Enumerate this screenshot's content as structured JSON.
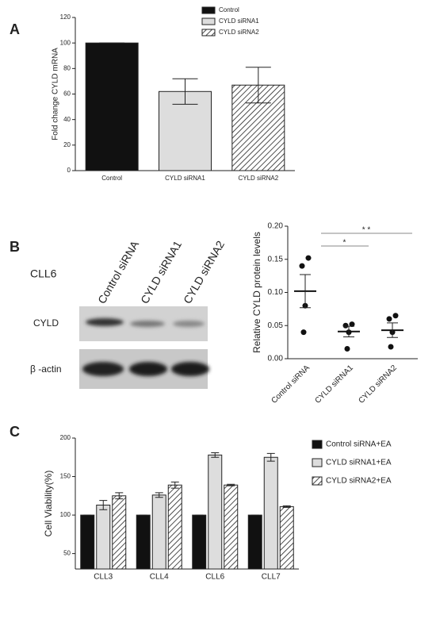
{
  "chart_data": [
    {
      "type": "bar",
      "panel": "A",
      "ylabel": "Fold change CYLD mRNA",
      "categories": [
        "Control",
        "CYLD siRNA1",
        "CYLD siRNA2"
      ],
      "values": [
        100,
        62,
        67
      ],
      "errors": [
        0,
        10,
        14
      ],
      "colors": [
        "#111111",
        "#dddddd",
        "#ffffff"
      ],
      "patterns": [
        "solid",
        "solid",
        "hatch"
      ],
      "ylim": [
        0,
        120
      ],
      "yticks": [
        0,
        20,
        40,
        60,
        80,
        100,
        120
      ],
      "legend": "top-right"
    },
    {
      "type": "dot",
      "panel": "B",
      "ylabel": "Relative CYLD protein levels",
      "blot": {
        "title": "CLL6",
        "lanes": [
          "Control siRNA",
          "CYLD siRNA1",
          "CYLD siRNA2"
        ],
        "rows": [
          "CYLD",
          "β -actin"
        ]
      },
      "categories": [
        "Control siRNA",
        "CYLD siRNA1",
        "CYLD siRNA2"
      ],
      "points": [
        [
          0.14,
          0.152,
          0.08,
          0.04
        ],
        [
          0.05,
          0.052,
          0.04,
          0.015
        ],
        [
          0.06,
          0.065,
          0.04,
          0.018
        ]
      ],
      "means": [
        0.102,
        0.041,
        0.043
      ],
      "errors": [
        0.025,
        0.008,
        0.011
      ],
      "ylim": [
        0,
        0.2
      ],
      "yticks": [
        {
          "value": 0,
          "label": "0.00"
        },
        {
          "value": 0.05,
          "label": "0.05"
        },
        {
          "value": 0.1,
          "label": "0.10"
        },
        {
          "value": 0.15,
          "label": "0.15"
        },
        {
          "value": 0.2,
          "label": "0.20"
        }
      ],
      "annotations": [
        {
          "text": "*",
          "from": 0,
          "to": 1
        },
        {
          "text": "* *",
          "from": 0,
          "to": 2
        }
      ]
    },
    {
      "type": "grouped-bar",
      "panel": "C",
      "ylabel": "Cell Viability(%)",
      "categories": [
        "CLL3",
        "CLL4",
        "CLL6",
        "CLL7"
      ],
      "series": [
        {
          "name": "Control siRNA+EA",
          "color": "#111111",
          "pattern": "solid",
          "values": [
            100,
            100,
            100,
            100
          ],
          "errors": [
            0,
            0,
            0,
            0
          ]
        },
        {
          "name": "CYLD siRNA1+EA",
          "color": "#dddddd",
          "pattern": "solid",
          "values": [
            113,
            126,
            178,
            175
          ],
          "errors": [
            6,
            3,
            3,
            5
          ]
        },
        {
          "name": "CYLD siRNA2+EA",
          "color": "#ffffff",
          "pattern": "hatch",
          "values": [
            125,
            139,
            139,
            111
          ],
          "errors": [
            4,
            4,
            1,
            1
          ]
        }
      ],
      "ylim": [
        30,
        200
      ],
      "yticks": [
        50,
        100,
        150,
        200
      ],
      "legend": "right"
    }
  ]
}
